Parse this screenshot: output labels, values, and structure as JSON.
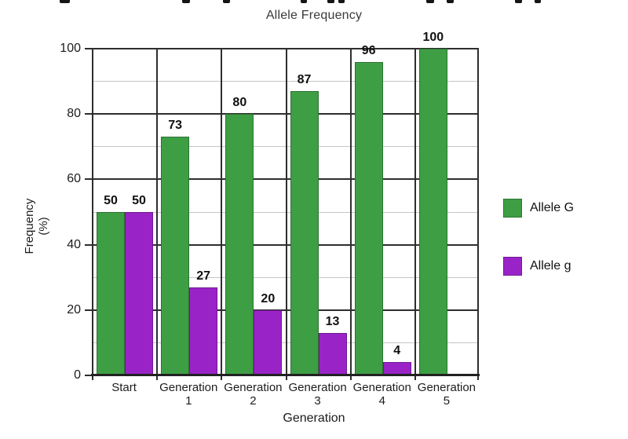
{
  "window": {
    "background": "#ffffff"
  },
  "cropped_top_text": {
    "fragments": [
      {
        "x": 76,
        "w": 13
      },
      {
        "x": 232,
        "w": 10
      },
      {
        "x": 284,
        "w": 9
      },
      {
        "x": 383,
        "w": 8
      },
      {
        "x": 417,
        "w": 9
      },
      {
        "x": 431,
        "w": 8
      },
      {
        "x": 543,
        "w": 10
      },
      {
        "x": 569,
        "w": 9
      },
      {
        "x": 656,
        "w": 9
      },
      {
        "x": 681,
        "w": 8
      }
    ]
  },
  "chart_data": {
    "type": "bar",
    "title": "Allele Frequency",
    "xlabel": "Generation",
    "ylabel": "Frequency (%)",
    "ylabel_lines": [
      "Frequency",
      "(%)"
    ],
    "categories": [
      "Start",
      "Generation 1",
      "Generation 2",
      "Generation 3",
      "Generation 4",
      "Generation 5"
    ],
    "category_label_lines": [
      [
        "Start"
      ],
      [
        "Generation",
        "1"
      ],
      [
        "Generation",
        "2"
      ],
      [
        "Generation",
        "3"
      ],
      [
        "Generation",
        "4"
      ],
      [
        "Generation",
        "5"
      ]
    ],
    "series": [
      {
        "name": "Allele G",
        "color": "#3e9e44",
        "values": [
          50,
          73,
          80,
          87,
          96,
          100
        ],
        "value_labels": [
          "50",
          "73",
          "80",
          "87",
          "96",
          "100"
        ]
      },
      {
        "name": "Allele g",
        "color": "#9a23c8",
        "values": [
          50,
          27,
          20,
          13,
          4,
          0
        ],
        "value_labels": [
          "50",
          "27",
          "20",
          "13",
          "4",
          ""
        ]
      }
    ],
    "ylim": [
      0,
      100
    ],
    "yticks": [
      0,
      20,
      40,
      60,
      80,
      100
    ],
    "minor_gridlines": [
      10,
      30,
      50,
      70,
      90
    ],
    "grid": true,
    "legend_position": "right",
    "colors": {
      "grid_major": "#2e2e2e",
      "grid_minor": "#c6c6c6",
      "axis_text": "#1c1c1c"
    }
  }
}
